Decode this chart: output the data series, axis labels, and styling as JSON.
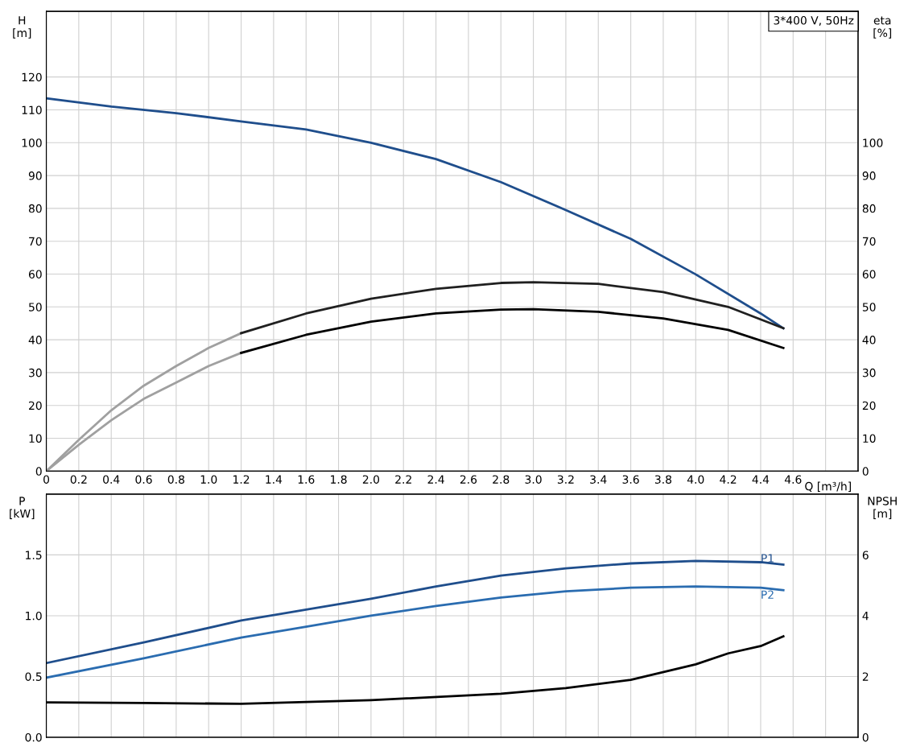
{
  "chart_data": [
    {
      "type": "line",
      "xlabel": "Q [m³/h]",
      "ylabel": "H\n[m]",
      "y2label": "eta\n[%]",
      "xlim": [
        0,
        5.0
      ],
      "xticks": [
        0,
        0.2,
        0.4,
        0.6,
        0.8,
        {
          "value": 1.0,
          "label": "1.0"
        },
        1.2,
        1.4,
        1.6,
        1.8,
        {
          "value": 2.0,
          "label": "2.0"
        },
        2.2,
        2.4,
        2.6,
        2.8,
        {
          "value": 3.0,
          "label": "3.0"
        },
        3.2,
        3.4,
        3.6,
        3.8,
        {
          "value": 4.0,
          "label": "4.0"
        },
        4.2,
        4.4,
        4.6,
        {
          "value": 4.8,
          "label": null
        },
        {
          "value": 5.0,
          "label": null
        }
      ],
      "ylim": [
        0,
        140
      ],
      "yticks": [
        0,
        10,
        20,
        30,
        40,
        50,
        60,
        70,
        80,
        90,
        100,
        110,
        120
      ],
      "y2lim": [
        0,
        140
      ],
      "y2ticks": [
        0,
        10,
        20,
        30,
        40,
        50,
        60,
        70,
        80,
        90,
        100
      ],
      "grid": true,
      "legend": false,
      "series": [
        {
          "color": "#1f4e8c",
          "x": [
            0,
            0.4,
            0.8,
            1.2,
            1.6,
            2.0,
            2.4,
            2.8,
            3.2,
            3.6,
            4.0,
            4.4,
            4.54
          ],
          "values": [
            113.5,
            111,
            109,
            106.5,
            104,
            100,
            95,
            88,
            79.5,
            70.7,
            59.9,
            48,
            43.5
          ]
        },
        {
          "color": "#a0a0a0",
          "axis": "y2",
          "x": [
            0,
            0.2,
            0.4,
            0.6,
            0.8,
            1.0,
            1.2
          ],
          "values": [
            0,
            9.5,
            18.5,
            26,
            32,
            37.5,
            42
          ]
        },
        {
          "color": "#202020",
          "axis": "y2",
          "x": [
            1.2,
            1.6,
            2.0,
            2.4,
            2.8,
            3.0,
            3.4,
            3.8,
            4.2,
            4.54
          ],
          "values": [
            42,
            48,
            52.5,
            55.5,
            57.3,
            57.5,
            57,
            54.5,
            50,
            43.5
          ]
        },
        {
          "color": "#a0a0a0",
          "axis": "y2",
          "x": [
            0,
            0.2,
            0.4,
            0.6,
            0.8,
            1.0,
            1.2
          ],
          "values": [
            0,
            8,
            15.5,
            22,
            27,
            32,
            36
          ]
        },
        {
          "color": "#000000",
          "axis": "y2",
          "x": [
            1.2,
            1.6,
            2.0,
            2.4,
            2.8,
            3.0,
            3.4,
            3.8,
            4.2,
            4.54
          ],
          "values": [
            36,
            41.5,
            45.5,
            48,
            49.2,
            49.3,
            48.5,
            46.5,
            43,
            37.5
          ]
        }
      ],
      "annotations": [
        "3*400 V, 50Hz"
      ]
    },
    {
      "type": "line",
      "ylabel": "P\n[kW]",
      "y2label": "NPSH\n[m]",
      "xlim": [
        0,
        5.0
      ],
      "xticks": [
        0,
        0.2,
        0.4,
        0.6,
        0.8,
        1.0,
        1.2,
        1.4,
        1.6,
        1.8,
        2.0,
        2.2,
        2.4,
        2.6,
        2.8,
        3.0,
        3.2,
        3.4,
        3.6,
        3.8,
        4.0,
        4.2,
        4.4,
        4.6,
        4.8,
        5.0
      ],
      "ylim": [
        0,
        2.0
      ],
      "yticks": [
        {
          "value": 0,
          "label": "0.0"
        },
        0.5,
        {
          "value": 1.0,
          "label": "1.0"
        },
        1.5
      ],
      "y2lim": [
        0,
        8
      ],
      "y2ticks": [
        0,
        2,
        4,
        6
      ],
      "grid": true,
      "legend": false,
      "tick_labels": "y",
      "series": [
        {
          "name": "P1",
          "color": "#1f4e8c",
          "x": [
            0,
            0.6,
            1.2,
            1.6,
            2.0,
            2.4,
            2.8,
            3.2,
            3.6,
            4.0,
            4.4,
            4.54
          ],
          "values": [
            0.61,
            0.78,
            0.96,
            1.05,
            1.14,
            1.24,
            1.33,
            1.39,
            1.43,
            1.45,
            1.44,
            1.42
          ]
        },
        {
          "name": "P2",
          "color": "#2a6cb0",
          "x": [
            0,
            0.6,
            1.2,
            1.6,
            2.0,
            2.4,
            2.8,
            3.2,
            3.6,
            4.0,
            4.4,
            4.54
          ],
          "values": [
            0.49,
            0.65,
            0.82,
            0.91,
            1.0,
            1.08,
            1.15,
            1.2,
            1.23,
            1.24,
            1.23,
            1.21
          ]
        },
        {
          "color": "#000000",
          "axis": "y2",
          "x": [
            0,
            0.6,
            1.2,
            2.0,
            2.8,
            3.2,
            3.6,
            4.0,
            4.2,
            4.4,
            4.54
          ],
          "values": [
            1.15,
            1.13,
            1.1,
            1.22,
            1.43,
            1.62,
            1.89,
            2.4,
            2.76,
            3.0,
            3.32
          ]
        }
      ]
    }
  ]
}
